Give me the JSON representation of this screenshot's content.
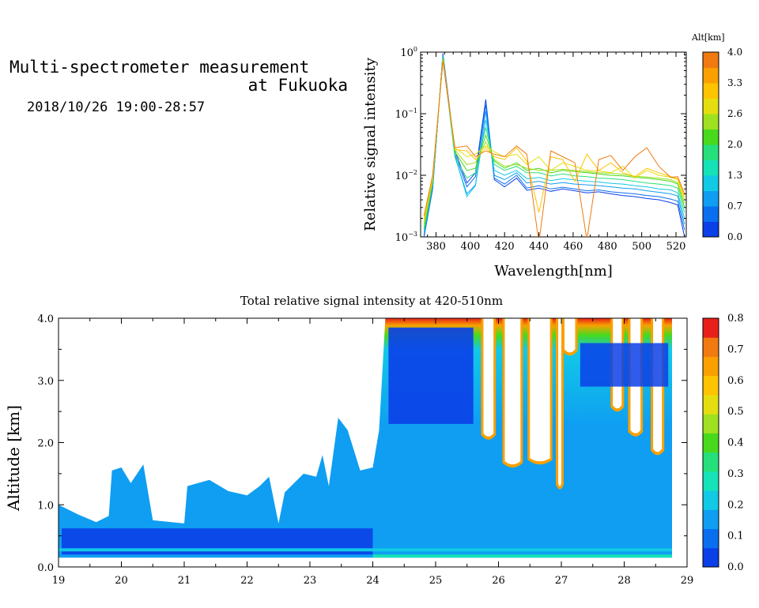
{
  "header": {
    "line1": "Multi-spectrometer measurement",
    "line2": "at Fukuoka",
    "line3": "2018/10/26 19:00-28:57"
  },
  "colors": {
    "blue": "#0b3fe8",
    "cyan": "#12c9e6",
    "green": "#49d91c",
    "yellow": "#f4d400",
    "orange": "#f07a10",
    "red": "#e8201a"
  },
  "chart_data": [
    {
      "type": "line",
      "title": "",
      "xlabel": "Wavelength[nm]",
      "ylabel": "Relative signal intensity",
      "xlim": [
        371,
        526
      ],
      "ylim_log10": [
        -3,
        0
      ],
      "y_scale": "log",
      "x_ticks": [
        380,
        400,
        420,
        440,
        460,
        480,
        500,
        520
      ],
      "y_ticks": [
        {
          "mant": "10",
          "exp": "0",
          "v": 0
        },
        {
          "mant": "10",
          "exp": "−1",
          "v": -1
        },
        {
          "mant": "10",
          "exp": "−2",
          "v": -2
        },
        {
          "mant": "10",
          "exp": "−3",
          "v": -3
        }
      ],
      "colorbar": {
        "label": "Alt[km]",
        "ticks": [
          "0.0",
          "0.7",
          "1.3",
          "2.0",
          "2.6",
          "3.3",
          "4.0"
        ],
        "colors": [
          "#0b3fe8",
          "#0a6ef0",
          "#0f9ef2",
          "#12c9e6",
          "#16e2b8",
          "#25e07a",
          "#49d91c",
          "#9fe020",
          "#e4de10",
          "#ffc400",
          "#f9a000",
          "#f07a10"
        ]
      },
      "x": [
        373,
        378,
        384,
        391,
        398,
        403,
        409,
        414,
        420,
        427,
        433,
        440,
        447,
        454,
        461,
        468,
        475,
        482,
        489,
        496,
        503,
        510,
        517,
        521,
        525
      ],
      "series": [
        {
          "altitude": 0.1,
          "color": "#0b3fe8",
          "values": [
            0.001,
            0.006,
            0.95,
            0.025,
            0.0075,
            0.011,
            0.17,
            0.0085,
            0.0065,
            0.009,
            0.0057,
            0.0062,
            0.0055,
            0.006,
            0.0056,
            0.0052,
            0.0054,
            0.005,
            0.0047,
            0.0045,
            0.0042,
            0.004,
            0.0036,
            0.0033,
            0.001
          ]
        },
        {
          "altitude": 0.5,
          "color": "#0a6ef0",
          "values": [
            0.001,
            0.0062,
            0.9,
            0.022,
            0.0065,
            0.0095,
            0.14,
            0.009,
            0.0072,
            0.01,
            0.0062,
            0.0068,
            0.006,
            0.0064,
            0.006,
            0.0056,
            0.0058,
            0.0054,
            0.0052,
            0.005,
            0.0047,
            0.0045,
            0.0041,
            0.0038,
            0.0013
          ]
        },
        {
          "altitude": 0.9,
          "color": "#0f9ef2",
          "values": [
            0.0011,
            0.0068,
            0.88,
            0.02,
            0.005,
            0.007,
            0.11,
            0.01,
            0.0085,
            0.011,
            0.0075,
            0.008,
            0.0072,
            0.0076,
            0.0072,
            0.007,
            0.0068,
            0.0065,
            0.0062,
            0.006,
            0.0056,
            0.0053,
            0.005,
            0.0046,
            0.0016
          ]
        },
        {
          "altitude": 1.3,
          "color": "#12c9e6",
          "values": [
            0.0012,
            0.0072,
            0.85,
            0.021,
            0.0045,
            0.0068,
            0.08,
            0.012,
            0.01,
            0.012,
            0.0088,
            0.0092,
            0.0082,
            0.0088,
            0.0084,
            0.008,
            0.0078,
            0.0074,
            0.0072,
            0.0068,
            0.0065,
            0.006,
            0.0058,
            0.0052,
            0.002
          ]
        },
        {
          "altitude": 1.8,
          "color": "#25e07a",
          "values": [
            0.0013,
            0.0075,
            0.82,
            0.02,
            0.009,
            0.011,
            0.06,
            0.015,
            0.012,
            0.014,
            0.011,
            0.011,
            0.0098,
            0.0105,
            0.0098,
            0.0095,
            0.009,
            0.0088,
            0.0085,
            0.008,
            0.0075,
            0.0072,
            0.0068,
            0.0062,
            0.0025
          ]
        },
        {
          "altitude": 2.3,
          "color": "#49d91c",
          "values": [
            0.0014,
            0.008,
            0.8,
            0.024,
            0.012,
            0.013,
            0.045,
            0.017,
            0.013,
            0.016,
            0.012,
            0.013,
            0.011,
            0.012,
            0.0115,
            0.011,
            0.0105,
            0.01,
            0.0098,
            0.0093,
            0.009,
            0.0085,
            0.008,
            0.0072,
            0.003
          ]
        },
        {
          "altitude": 2.8,
          "color": "#9fe020",
          "values": [
            0.0016,
            0.0085,
            0.78,
            0.026,
            0.015,
            0.016,
            0.035,
            0.018,
            0.014,
            0.015,
            0.013,
            0.012,
            0.012,
            0.0125,
            0.012,
            0.0115,
            0.011,
            0.0108,
            0.0104,
            0.0096,
            0.0094,
            0.009,
            0.0085,
            0.0076,
            0.0035
          ]
        },
        {
          "altitude": 3.2,
          "color": "#e4de10",
          "values": [
            0.0018,
            0.009,
            0.75,
            0.028,
            0.02,
            0.022,
            0.03,
            0.024,
            0.02,
            0.022,
            0.015,
            0.02,
            0.012,
            0.016,
            0.014,
            0.012,
            0.0118,
            0.011,
            0.014,
            0.009,
            0.012,
            0.01,
            0.0093,
            0.0085,
            0.004
          ]
        },
        {
          "altitude": 3.6,
          "color": "#ffc400",
          "values": [
            0.002,
            0.0095,
            0.72,
            0.026,
            0.025,
            0.018,
            0.028,
            0.02,
            0.018,
            0.028,
            0.017,
            0.0025,
            0.02,
            0.018,
            0.008,
            0.022,
            0.012,
            0.016,
            0.011,
            0.0095,
            0.013,
            0.011,
            0.0095,
            0.0088,
            0.0045
          ]
        },
        {
          "altitude": 3.9,
          "color": "#f07a10",
          "values": [
            0.0022,
            0.01,
            0.7,
            0.028,
            0.03,
            0.02,
            0.025,
            0.022,
            0.02,
            0.03,
            0.022,
            0.0008,
            0.025,
            0.02,
            0.016,
            0.0009,
            0.018,
            0.021,
            0.012,
            0.02,
            0.028,
            0.014,
            0.0092,
            0.0095,
            0.005
          ]
        }
      ]
    },
    {
      "type": "heatmap",
      "title": "Total relative signal intensity at 420-510nm",
      "xlabel": "",
      "ylabel": "Altitude [km]",
      "xlim": [
        19,
        29
      ],
      "ylim": [
        0,
        4
      ],
      "x_ticks": [
        "19",
        "20",
        "21",
        "22",
        "23",
        "24",
        "25",
        "26",
        "27",
        "28",
        "29"
      ],
      "y_ticks": [
        "0.0",
        "1.0",
        "2.0",
        "3.0",
        "4.0"
      ],
      "data_xrange": [
        19,
        28.8
      ],
      "data_yrange": [
        0.15,
        4
      ],
      "colorbar": {
        "ticks": [
          "0.0",
          "0.1",
          "0.2",
          "0.3",
          "0.4",
          "0.5",
          "0.6",
          "0.7",
          "0.8"
        ],
        "colors": [
          "#0b3fe8",
          "#0a6ef0",
          "#0f9ef2",
          "#12c9e6",
          "#16e2b8",
          "#25e07a",
          "#49d91c",
          "#9fe020",
          "#e4de10",
          "#ffc400",
          "#f9a000",
          "#f07a10",
          "#e8201a"
        ]
      },
      "signal_top_km": [
        {
          "x": 19.0,
          "h": 1.0
        },
        {
          "x": 19.3,
          "h": 0.85
        },
        {
          "x": 19.6,
          "h": 0.72
        },
        {
          "x": 19.8,
          "h": 0.82
        },
        {
          "x": 19.85,
          "h": 1.55
        },
        {
          "x": 20.0,
          "h": 1.6
        },
        {
          "x": 20.15,
          "h": 1.35
        },
        {
          "x": 20.25,
          "h": 1.5
        },
        {
          "x": 20.35,
          "h": 1.65
        },
        {
          "x": 20.5,
          "h": 0.75
        },
        {
          "x": 21.0,
          "h": 0.7
        },
        {
          "x": 21.05,
          "h": 1.3
        },
        {
          "x": 21.4,
          "h": 1.4
        },
        {
          "x": 21.7,
          "h": 1.22
        },
        {
          "x": 22.0,
          "h": 1.15
        },
        {
          "x": 22.2,
          "h": 1.3
        },
        {
          "x": 22.35,
          "h": 1.45
        },
        {
          "x": 22.5,
          "h": 0.7
        },
        {
          "x": 22.6,
          "h": 1.2
        },
        {
          "x": 22.9,
          "h": 1.5
        },
        {
          "x": 23.1,
          "h": 1.45
        },
        {
          "x": 23.2,
          "h": 1.8
        },
        {
          "x": 23.3,
          "h": 1.3
        },
        {
          "x": 23.45,
          "h": 2.4
        },
        {
          "x": 23.6,
          "h": 2.2
        },
        {
          "x": 23.8,
          "h": 1.55
        },
        {
          "x": 24.0,
          "h": 1.6
        },
        {
          "x": 24.1,
          "h": 2.2
        },
        {
          "x": 24.2,
          "h": 4.0
        },
        {
          "x": 28.8,
          "h": 4.0
        }
      ],
      "gaps": [
        {
          "x1": 25.76,
          "x2": 25.92,
          "h": 2.15
        },
        {
          "x1": 26.1,
          "x2": 26.35,
          "h": 1.7
        },
        {
          "x1": 26.5,
          "x2": 26.82,
          "h": 1.75
        },
        {
          "x1": 26.95,
          "x2": 27.0,
          "h": 1.35
        },
        {
          "x1": 27.05,
          "x2": 27.22,
          "h": 3.5
        },
        {
          "x1": 27.82,
          "x2": 27.96,
          "h": 2.6
        },
        {
          "x1": 28.1,
          "x2": 28.26,
          "h": 2.2
        },
        {
          "x1": 28.46,
          "x2": 28.6,
          "h": 1.9
        }
      ]
    }
  ]
}
